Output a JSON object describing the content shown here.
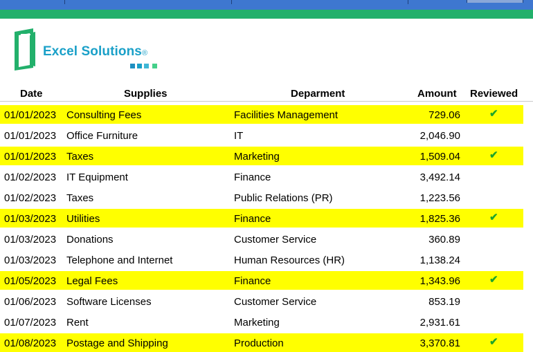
{
  "brand": {
    "name": "Excel Solutions",
    "registered_mark": "®",
    "colors": {
      "primary": "#1aa0c8",
      "green": "#22b06b",
      "dots": [
        "#1f8fc1",
        "#1aa0c8",
        "#3fb7d6",
        "#44d08a"
      ]
    }
  },
  "colors": {
    "header_blue": "#3e77d0",
    "header_green": "#22b06b",
    "highlight": "#ffff00",
    "check": "#1fa52a"
  },
  "table": {
    "headers": {
      "date": "Date",
      "supplies": "Supplies",
      "department": "Deparment",
      "amount": "Amount",
      "reviewed": "Reviewed"
    },
    "check_symbol": "✔",
    "rows": [
      {
        "date": "01/01/2023",
        "supplies": "Consulting Fees",
        "department": "Facilities Management",
        "amount": "729.06",
        "reviewed": "✔",
        "highlight": true
      },
      {
        "date": "01/01/2023",
        "supplies": "Office Furniture",
        "department": "IT",
        "amount": "2,046.90",
        "reviewed": "",
        "highlight": false
      },
      {
        "date": "01/01/2023",
        "supplies": "Taxes",
        "department": "Marketing",
        "amount": "1,509.04",
        "reviewed": "✔",
        "highlight": true
      },
      {
        "date": "01/02/2023",
        "supplies": "IT Equipment",
        "department": "Finance",
        "amount": "3,492.14",
        "reviewed": "",
        "highlight": false
      },
      {
        "date": "01/02/2023",
        "supplies": "Taxes",
        "department": "Public Relations (PR)",
        "amount": "1,223.56",
        "reviewed": "",
        "highlight": false
      },
      {
        "date": "01/03/2023",
        "supplies": "Utilities",
        "department": "Finance",
        "amount": "1,825.36",
        "reviewed": "✔",
        "highlight": true
      },
      {
        "date": "01/03/2023",
        "supplies": "Donations",
        "department": "Customer Service",
        "amount": "360.89",
        "reviewed": "",
        "highlight": false
      },
      {
        "date": "01/03/2023",
        "supplies": "Telephone and Internet",
        "department": "Human Resources (HR)",
        "amount": "1,138.24",
        "reviewed": "",
        "highlight": false
      },
      {
        "date": "01/05/2023",
        "supplies": "Legal Fees",
        "department": "Finance",
        "amount": "1,343.96",
        "reviewed": "✔",
        "highlight": true
      },
      {
        "date": "01/06/2023",
        "supplies": "Software Licenses",
        "department": "Customer Service",
        "amount": "853.19",
        "reviewed": "",
        "highlight": false
      },
      {
        "date": "01/07/2023",
        "supplies": "Rent",
        "department": "Marketing",
        "amount": "2,931.61",
        "reviewed": "",
        "highlight": false
      },
      {
        "date": "01/08/2023",
        "supplies": "Postage and Shipping",
        "department": "Production",
        "amount": "3,370.81",
        "reviewed": "✔",
        "highlight": true
      }
    ]
  }
}
